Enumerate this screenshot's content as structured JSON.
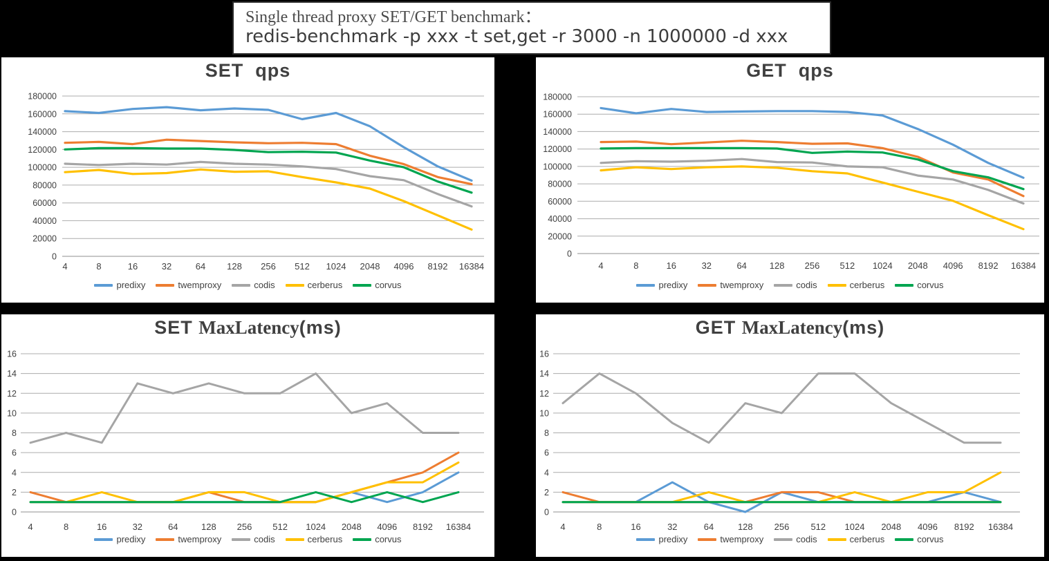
{
  "title_box": {
    "line1": "Single thread proxy SET/GET benchmark：",
    "line2": "redis-benchmark -p xxx -t set,get -r 3000 -n 1000000 -d xxx"
  },
  "colors": {
    "predixy": "#5B9BD5",
    "twemproxy": "#ED7D31",
    "codis": "#A5A5A5",
    "cerberus": "#FFC000",
    "corvus": "#00A550",
    "grid": "#ACACAC",
    "axis": "#8F8F8F",
    "text": "#404040"
  },
  "chart_data": [
    {
      "id": "set-qps",
      "type": "line",
      "title": {
        "bold_start": "SET  qps",
        "serif_mid": "",
        "bold_end": ""
      },
      "categories": [
        "4",
        "8",
        "16",
        "32",
        "64",
        "128",
        "256",
        "512",
        "1024",
        "2048",
        "4096",
        "8192",
        "16384"
      ],
      "xlabel": "",
      "ylabel": "",
      "ylim": [
        0,
        180000
      ],
      "ytick_step": 20000,
      "grid": "horizontal",
      "legend_position": "bottom",
      "series": [
        {
          "name": "predixy",
          "color": "#5B9BD5",
          "values": [
            163000,
            161000,
            165500,
            167500,
            164000,
            166000,
            164500,
            154000,
            161000,
            146000,
            122500,
            101000,
            85000
          ]
        },
        {
          "name": "twemproxy",
          "color": "#ED7D31",
          "values": [
            127500,
            128500,
            126000,
            131000,
            129500,
            128000,
            127000,
            127500,
            126000,
            113000,
            103500,
            89000,
            81000
          ]
        },
        {
          "name": "codis",
          "color": "#A5A5A5",
          "values": [
            104000,
            102500,
            104000,
            103000,
            106000,
            104000,
            103000,
            101000,
            98000,
            90000,
            85500,
            70000,
            56000
          ]
        },
        {
          "name": "cerberus",
          "color": "#FFC000",
          "values": [
            94500,
            97000,
            92500,
            93500,
            97500,
            95000,
            95500,
            89000,
            83000,
            76000,
            62000,
            46000,
            30000
          ]
        },
        {
          "name": "corvus",
          "color": "#00A550",
          "values": [
            120000,
            121500,
            121500,
            121000,
            121000,
            119500,
            117000,
            117500,
            116500,
            107500,
            100000,
            84000,
            71500
          ]
        }
      ]
    },
    {
      "id": "get-qps",
      "type": "line",
      "title": {
        "bold_start": "GET  qps",
        "serif_mid": "",
        "bold_end": ""
      },
      "categories": [
        "4",
        "8",
        "16",
        "32",
        "64",
        "128",
        "256",
        "512",
        "1024",
        "2048",
        "4096",
        "8192",
        "16384"
      ],
      "xlabel": "",
      "ylabel": "",
      "ylim": [
        0,
        180000
      ],
      "ytick_step": 20000,
      "grid": "horizontal",
      "legend_position": "bottom",
      "series": [
        {
          "name": "predixy",
          "color": "#5B9BD5",
          "values": [
            167000,
            161000,
            166000,
            162500,
            163000,
            163500,
            163500,
            162500,
            158500,
            143000,
            125000,
            104000,
            87000
          ]
        },
        {
          "name": "twemproxy",
          "color": "#ED7D31",
          "values": [
            128000,
            128500,
            125500,
            127500,
            129500,
            128000,
            126000,
            126500,
            121000,
            111000,
            93000,
            85000,
            66000
          ]
        },
        {
          "name": "codis",
          "color": "#A5A5A5",
          "values": [
            104000,
            106000,
            105500,
            106500,
            108500,
            105000,
            104500,
            100000,
            99000,
            89500,
            85000,
            73000,
            57500
          ]
        },
        {
          "name": "cerberus",
          "color": "#FFC000",
          "values": [
            95500,
            99000,
            97000,
            99000,
            100000,
            98500,
            94500,
            92000,
            81500,
            71000,
            60500,
            44000,
            28000
          ]
        },
        {
          "name": "corvus",
          "color": "#00A550",
          "values": [
            120500,
            121000,
            121000,
            121000,
            121000,
            120500,
            115500,
            117000,
            116000,
            108000,
            94500,
            87500,
            74000
          ]
        }
      ]
    },
    {
      "id": "set-maxlatency",
      "type": "line",
      "title": {
        "bold_start": "SET ",
        "serif_mid": "MaxLatency",
        "bold_end": "(ms)"
      },
      "categories": [
        "4",
        "8",
        "16",
        "32",
        "64",
        "128",
        "256",
        "512",
        "1024",
        "2048",
        "4096",
        "8192",
        "16384"
      ],
      "xlabel": "",
      "ylabel": "",
      "ylim": [
        0,
        16
      ],
      "ytick_step": 2,
      "grid": "horizontal",
      "legend_position": "bottom",
      "series": [
        {
          "name": "predixy",
          "color": "#5B9BD5",
          "values": [
            1,
            1,
            1,
            1,
            1,
            1,
            1,
            1,
            1,
            2,
            1,
            2,
            4
          ]
        },
        {
          "name": "twemproxy",
          "color": "#ED7D31",
          "values": [
            2,
            1,
            1,
            1,
            1,
            2,
            1,
            1,
            1,
            2,
            3,
            4,
            6
          ]
        },
        {
          "name": "codis",
          "color": "#A5A5A5",
          "values": [
            7,
            8,
            7,
            13,
            12,
            13,
            12,
            12,
            14,
            10,
            11,
            8,
            8
          ]
        },
        {
          "name": "cerberus",
          "color": "#FFC000",
          "values": [
            1,
            1,
            2,
            1,
            1,
            2,
            2,
            1,
            1,
            2,
            3,
            3,
            5
          ]
        },
        {
          "name": "corvus",
          "color": "#00A550",
          "values": [
            1,
            1,
            1,
            1,
            1,
            1,
            1,
            1,
            2,
            1,
            2,
            1,
            2
          ]
        }
      ]
    },
    {
      "id": "get-maxlatency",
      "type": "line",
      "title": {
        "bold_start": "GET ",
        "serif_mid": "MaxLatency",
        "bold_end": "(ms)"
      },
      "categories": [
        "4",
        "8",
        "16",
        "32",
        "64",
        "128",
        "256",
        "512",
        "1024",
        "2048",
        "4096",
        "8192",
        "16384"
      ],
      "xlabel": "",
      "ylabel": "",
      "ylim": [
        0,
        16
      ],
      "ytick_step": 2,
      "grid": "horizontal",
      "legend_position": "bottom",
      "series": [
        {
          "name": "predixy",
          "color": "#5B9BD5",
          "values": [
            1,
            1,
            1,
            3,
            1,
            0,
            2,
            1,
            1,
            1,
            1,
            2,
            1
          ]
        },
        {
          "name": "twemproxy",
          "color": "#ED7D31",
          "values": [
            2,
            1,
            1,
            1,
            1,
            1,
            2,
            2,
            1,
            1,
            1,
            1,
            1
          ]
        },
        {
          "name": "codis",
          "color": "#A5A5A5",
          "values": [
            11,
            14,
            12,
            9,
            7,
            11,
            10,
            14,
            14,
            11,
            9,
            7,
            7
          ]
        },
        {
          "name": "cerberus",
          "color": "#FFC000",
          "values": [
            1,
            1,
            1,
            1,
            2,
            1,
            1,
            1,
            2,
            1,
            2,
            2,
            4
          ]
        },
        {
          "name": "corvus",
          "color": "#00A550",
          "values": [
            1,
            1,
            1,
            1,
            1,
            1,
            1,
            1,
            1,
            1,
            1,
            1,
            1
          ]
        }
      ]
    }
  ]
}
